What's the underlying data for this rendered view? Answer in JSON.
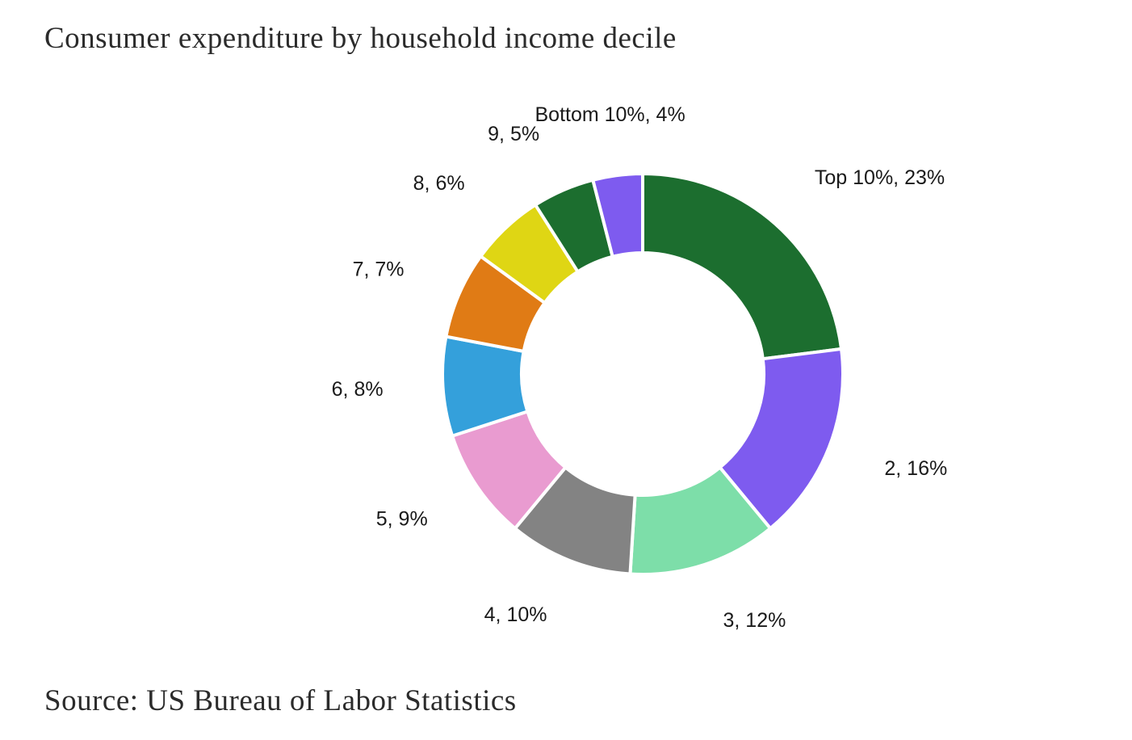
{
  "title": "Consumer expenditure by household income decile",
  "source": "Source: US Bureau of Labor Statistics",
  "chart_data": {
    "type": "pie",
    "donut": true,
    "slices": [
      {
        "name": "Top 10%",
        "value": 23,
        "label": "Top 10%, 23%",
        "color": "#1c6e2f"
      },
      {
        "name": "2",
        "value": 16,
        "label": "2, 16%",
        "color": "#7e5bef"
      },
      {
        "name": "3",
        "value": 12,
        "label": "3, 12%",
        "color": "#7ddea9"
      },
      {
        "name": "4",
        "value": 10,
        "label": "4, 10%",
        "color": "#838383"
      },
      {
        "name": "5",
        "value": 9,
        "label": "5, 9%",
        "color": "#e99bd0"
      },
      {
        "name": "6",
        "value": 8,
        "label": "6, 8%",
        "color": "#34a0db"
      },
      {
        "name": "7",
        "value": 7,
        "label": "7, 7%",
        "color": "#e07b15"
      },
      {
        "name": "8",
        "value": 6,
        "label": "8, 6%",
        "color": "#dfd614"
      },
      {
        "name": "9",
        "value": 5,
        "label": "9, 5%",
        "color": "#1c6e2f"
      },
      {
        "name": "Bottom 10%",
        "value": 4,
        "label": "Bottom 10%, 4%",
        "color": "#7e5bef"
      }
    ]
  }
}
